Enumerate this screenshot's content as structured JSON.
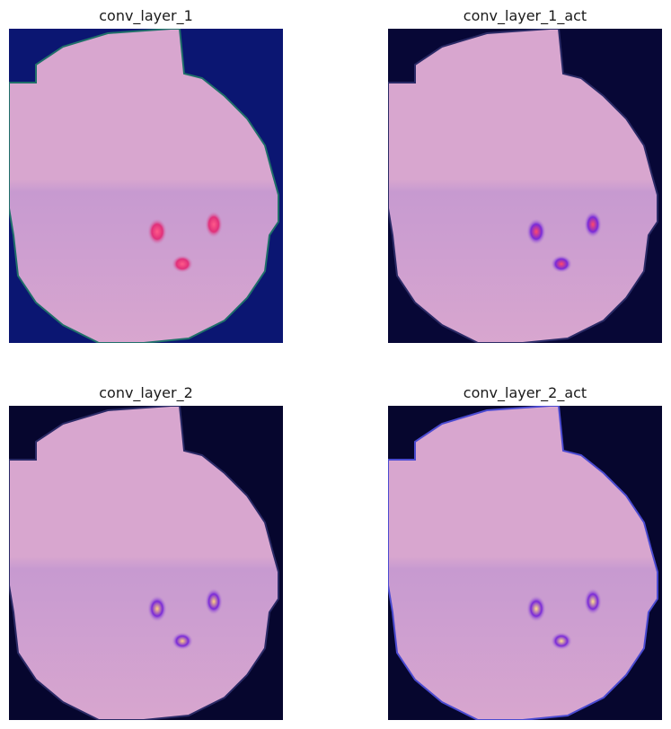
{
  "panels": [
    {
      "title": "conv_layer_1",
      "bg": "#0b1672",
      "edge": "#1f6f6a",
      "blob": "#e0307a",
      "blob_core": "#ff5a8a"
    },
    {
      "title": "conv_layer_1_act",
      "bg": "#070736",
      "edge": "#2a2a66",
      "blob": "#7a2ad8",
      "blob_core": "#ff4a6a"
    },
    {
      "title": "conv_layer_2",
      "bg": "#06062e",
      "edge": "#2a2a66",
      "blob": "#7a2ad8",
      "blob_core": "#ffd080"
    },
    {
      "title": "conv_layer_2_act",
      "bg": "#06062e",
      "edge": "#4a4ad0",
      "blob": "#7a2ad8",
      "blob_core": "#ffe08a"
    }
  ],
  "cell_color": "#d8a6cf",
  "cell_shade": "#c79ad0"
}
